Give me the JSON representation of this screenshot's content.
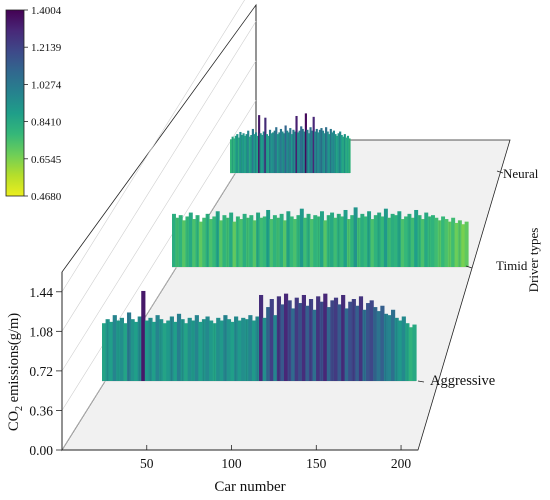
{
  "chart_data": {
    "type": "3d-bar",
    "xlabel": "Car number",
    "ylabel": "CO",
    "ylabel_sub": "2",
    "ylabel_rest": " emissions(g/m)",
    "zlabel": "Driver types",
    "x_ticks": [
      50,
      100,
      150,
      200
    ],
    "y_ticks": [
      "0.00",
      "0.36",
      "0.72",
      "1.08",
      "1.44"
    ],
    "ylim": [
      0,
      1.62
    ],
    "colorbar": {
      "min": 0.468,
      "max": 1.4004,
      "ticks": [
        "1.4004",
        "1.2139",
        "1.0274",
        "0.8410",
        "0.6545",
        "0.4680"
      ],
      "stops": [
        "#ecee1e",
        "#b5de2b",
        "#6ece58",
        "#35b779",
        "#1f9e89",
        "#26828e",
        "#31688e",
        "#3e4989",
        "#482878",
        "#440154"
      ]
    },
    "series": [
      {
        "name": "Neural",
        "x_start": 103,
        "x_end": 200,
        "values": [
          0.78,
          0.84,
          0.8,
          0.86,
          0.9,
          0.82,
          0.95,
          0.88,
          0.92,
          0.86,
          0.9,
          0.98,
          0.84,
          0.88,
          1.02,
          0.9,
          0.94,
          0.86,
          1.34,
          0.92,
          0.88,
          0.96,
          1.28,
          0.9,
          0.86,
          1.0,
          0.92,
          0.94,
          0.98,
          1.06,
          0.9,
          0.94,
          1.02,
          0.96,
          0.92,
          1.1,
          0.98,
          0.94,
          1.04,
          0.9,
          1.0,
          0.96,
          1.32,
          0.94,
          0.98,
          1.08,
          1.02,
          0.96,
          1.38,
          1.0,
          0.92,
          1.06,
          0.98,
          1.3,
          0.96,
          1.02,
          0.94,
          1.0,
          1.04,
          0.98,
          0.92,
          1.06,
          0.96,
          0.9,
          1.02,
          0.94,
          0.98,
          0.9,
          0.86,
          0.92,
          0.96,
          0.88,
          0.84,
          0.9,
          0.82,
          0.86,
          0.8
        ]
      },
      {
        "name": "Timid",
        "x_start": 25,
        "x_end": 200,
        "values": [
          0.82,
          0.76,
          0.8,
          0.72,
          0.78,
          0.84,
          0.74,
          0.8,
          0.7,
          0.76,
          0.82,
          0.74,
          0.78,
          0.86,
          0.72,
          0.8,
          0.76,
          0.84,
          0.7,
          0.78,
          0.74,
          0.82,
          0.76,
          0.8,
          0.72,
          0.84,
          0.76,
          0.78,
          0.88,
          0.74,
          0.8,
          0.76,
          0.82,
          0.72,
          0.86,
          0.78,
          0.74,
          0.8,
          0.9,
          0.76,
          0.82,
          0.74,
          0.8,
          0.78,
          0.86,
          0.72,
          0.8,
          0.84,
          0.76,
          0.82,
          0.78,
          0.88,
          0.74,
          0.8,
          0.92,
          0.76,
          0.82,
          0.78,
          0.86,
          0.74,
          0.8,
          0.84,
          0.78,
          0.9,
          0.76,
          0.82,
          0.8,
          0.86,
          0.74,
          0.78,
          0.82,
          0.76,
          0.88,
          0.8,
          0.74,
          0.84,
          0.78,
          0.8,
          0.76,
          0.72,
          0.78,
          0.74,
          0.7,
          0.76,
          0.68,
          0.72,
          0.66,
          0.7
        ]
      },
      {
        "name": "Aggressive",
        "x_start": 25,
        "x_end": 200,
        "values": [
          0.86,
          0.92,
          0.88,
          0.98,
          0.9,
          0.94,
          0.86,
          1.02,
          0.92,
          0.88,
          0.96,
          1.34,
          0.9,
          0.94,
          0.88,
          0.98,
          0.92,
          0.86,
          0.9,
          0.96,
          0.88,
          1.0,
          0.92,
          0.86,
          0.94,
          0.9,
          0.98,
          0.88,
          0.92,
          0.96,
          0.9,
          0.86,
          0.94,
          0.9,
          0.98,
          0.92,
          0.88,
          0.96,
          0.9,
          0.94,
          0.92,
          0.98,
          0.9,
          0.96,
          1.28,
          0.94,
          1.1,
          1.22,
          0.98,
          1.26,
          1.14,
          1.3,
          1.2,
          1.08,
          1.24,
          1.16,
          1.28,
          1.12,
          1.22,
          1.06,
          1.26,
          1.18,
          1.3,
          1.1,
          1.2,
          1.24,
          1.14,
          1.28,
          1.08,
          1.18,
          1.22,
          1.12,
          1.26,
          1.06,
          1.16,
          1.2,
          1.1,
          1.04,
          1.12,
          1.0,
          0.98,
          1.06,
          0.94,
          0.9,
          0.96,
          0.86,
          0.8,
          0.84
        ]
      }
    ]
  }
}
